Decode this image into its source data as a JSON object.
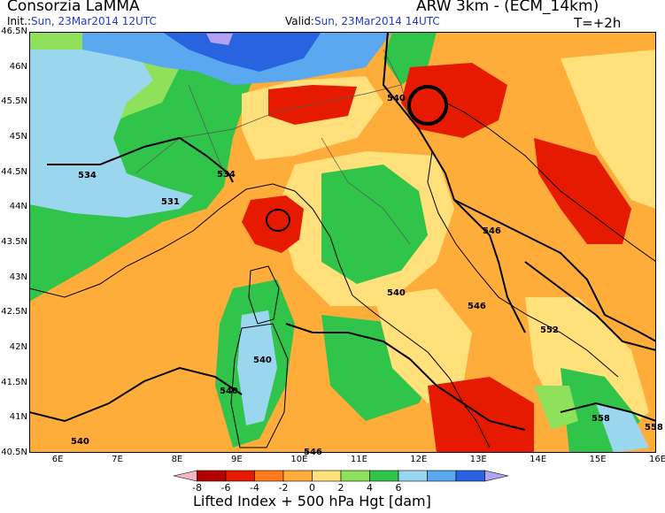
{
  "header": {
    "title": "Consorzia LaMMA",
    "init_label": "Init.:",
    "init_value": "Sun, 23Mar2014 12UTC",
    "valid_label": "Valid:",
    "valid_value": "Sun, 23Mar2014 14UTC",
    "model": "ARW 3km - (ECM_14km)",
    "forecast_step": "T=+2h"
  },
  "map": {
    "lat_ticks": [
      "46.5N",
      "46N",
      "45.5N",
      "45N",
      "44.5N",
      "44N",
      "43.5N",
      "43N",
      "42.5N",
      "42N",
      "41.5N",
      "41N",
      "40.5N"
    ],
    "lon_ticks": [
      "6E",
      "7E",
      "8E",
      "9E",
      "10E",
      "11E",
      "12E",
      "13E",
      "14E",
      "15E",
      "16E"
    ],
    "lon_range": [
      5.5,
      16.0
    ],
    "lat_range": [
      40.5,
      46.5
    ],
    "contour_labels": [
      "534",
      "531",
      "534",
      "540",
      "546",
      "540",
      "546",
      "552",
      "540",
      "540",
      "540",
      "546",
      "558",
      "558"
    ],
    "highlight_marker": "black-circle"
  },
  "colorbar": {
    "title": "Lifted Index + 500 hPa Hgt [dam]",
    "tick_labels": [
      "-8",
      "-6",
      "-4",
      "-2",
      "0",
      "2",
      "4",
      "6"
    ],
    "colors": [
      "#f6b7c2",
      "#b50000",
      "#e61a00",
      "#ff7a1a",
      "#ffad3a",
      "#ffe07a",
      "#8fe05a",
      "#31c44a",
      "#9ad7ee",
      "#5aa8f0",
      "#2a63e0",
      "#b3a2f2"
    ]
  }
}
